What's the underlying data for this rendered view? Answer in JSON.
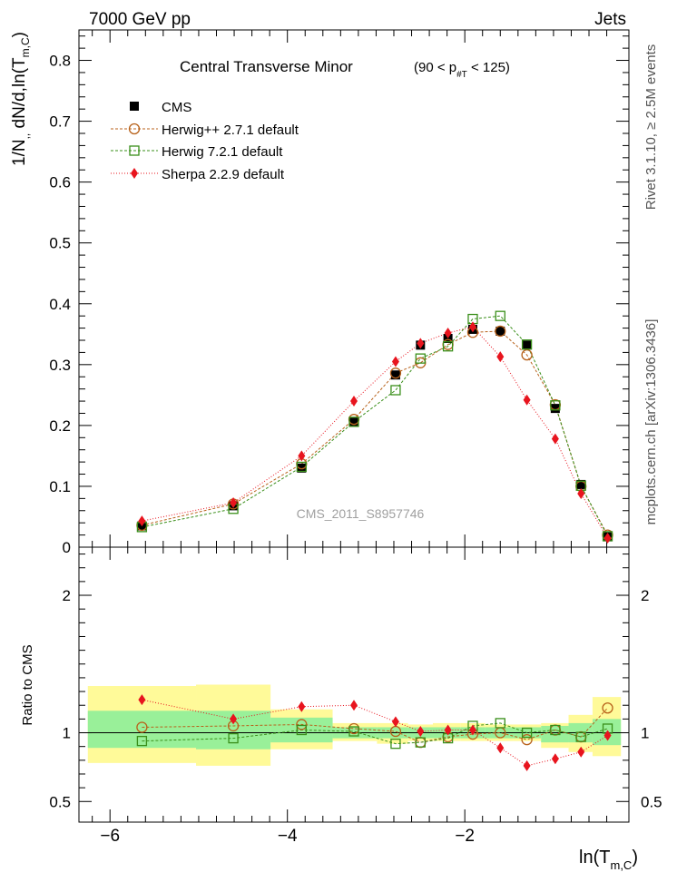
{
  "header": {
    "left": "7000 GeV pp",
    "right": "Jets",
    "side_right_top": "Rivet 3.1.10, ≥ 2.5M events",
    "side_right_bottom": "mcplots.cern.ch [arXiv:1306.3436]",
    "watermark": "CMS_2011_S8957746"
  },
  "colors": {
    "cms": "#000000",
    "herwigpp": "#b8621b",
    "herwig7": "#3a8f1a",
    "sherpa": "#e8141e",
    "band_inner": "#99f099",
    "band_outer": "#fffa99"
  },
  "chart_data": [
    {
      "type": "line",
      "title": "Central Transverse Minor",
      "title_range": "(90 < p",
      "title_range_sub": "#T",
      "title_range_end": " < 125)",
      "ylabel": "1/N",
      "ylabel_sub1": ",,",
      "ylabel_mid": " dN/d,ln(T",
      "ylabel_sub2": "m,C",
      "ylabel_end": ")",
      "xlim": [
        -6.35,
        -0.15
      ],
      "ylim": [
        0,
        0.85
      ],
      "yticks": [
        "0",
        "0.1",
        "0.2",
        "0.3",
        "0.4",
        "0.5",
        "0.6",
        "0.7",
        "0.8"
      ],
      "legend_placement": "top-left",
      "x": [
        -5.64,
        -4.61,
        -3.84,
        -3.25,
        -2.78,
        -2.5,
        -2.19,
        -1.91,
        -1.6,
        -1.3,
        -0.98,
        -0.69,
        -0.39
      ],
      "bin_edges": [
        -6.25,
        -5.03,
        -4.19,
        -3.49,
        -2.99,
        -2.64,
        -2.36,
        -2.05,
        -1.77,
        -1.45,
        -1.14,
        -0.83,
        -0.56,
        -0.24
      ],
      "series": [
        {
          "name": "CMS",
          "key": "cms",
          "marker": "square-filled",
          "values": [
            0.035,
            0.068,
            0.13,
            0.205,
            0.283,
            0.332,
            0.343,
            0.358,
            0.355,
            0.332,
            0.228,
            0.103,
            0.017
          ]
        },
        {
          "name": "Herwig++ 2.7.1 default",
          "key": "herwigpp",
          "marker": "circle-open",
          "values": [
            0.036,
            0.071,
            0.137,
            0.21,
            0.286,
            0.303,
            0.333,
            0.353,
            0.355,
            0.316,
            0.234,
            0.1,
            0.02
          ]
        },
        {
          "name": "Herwig 7.2.1 default",
          "key": "herwig7",
          "marker": "square-open",
          "values": [
            0.033,
            0.063,
            0.132,
            0.206,
            0.258,
            0.31,
            0.33,
            0.375,
            0.38,
            0.333,
            0.233,
            0.101,
            0.018
          ]
        },
        {
          "name": "Sherpa 2.2.9 default",
          "key": "sherpa",
          "marker": "diamond-filled",
          "values": [
            0.043,
            0.073,
            0.15,
            0.24,
            0.305,
            0.335,
            0.352,
            0.362,
            0.313,
            0.242,
            0.178,
            0.088,
            0.015
          ]
        }
      ]
    },
    {
      "type": "line",
      "ylabel": "Ratio to CMS",
      "xlabel": "ln(T",
      "xlabel_sub": "m,C",
      "xlabel_end": ")",
      "xlim": [
        -6.35,
        -0.15
      ],
      "ylim": [
        0.35,
        2.35
      ],
      "yticks": [
        "0.5",
        "1",
        "2"
      ],
      "xticks": [
        "−6",
        "−4",
        "−2"
      ],
      "reference_line": 1,
      "band_inner": [
        [
          0.89,
          1.16
        ],
        [
          0.88,
          1.16
        ],
        [
          0.93,
          1.11
        ],
        [
          0.96,
          1.04
        ],
        [
          0.96,
          1.04
        ],
        [
          0.96,
          1.04
        ],
        [
          0.96,
          1.04
        ],
        [
          0.96,
          1.04
        ],
        [
          0.96,
          1.04
        ],
        [
          0.96,
          1.04
        ],
        [
          0.93,
          1.05
        ],
        [
          0.93,
          1.07
        ],
        [
          0.91,
          1.1
        ]
      ],
      "band_outer": [
        [
          0.78,
          1.34
        ],
        [
          0.76,
          1.35
        ],
        [
          0.88,
          1.17
        ],
        [
          0.94,
          1.07
        ],
        [
          0.92,
          1.07
        ],
        [
          0.94,
          1.06
        ],
        [
          0.94,
          1.07
        ],
        [
          0.94,
          1.07
        ],
        [
          0.94,
          1.06
        ],
        [
          0.94,
          1.06
        ],
        [
          0.89,
          1.07
        ],
        [
          0.86,
          1.13
        ],
        [
          0.83,
          1.26
        ]
      ],
      "series": [
        {
          "name": "Herwig++ 2.7.1 default",
          "key": "herwigpp",
          "marker": "circle-open",
          "values": [
            1.04,
            1.05,
            1.06,
            1.03,
            1.01,
            0.93,
            0.97,
            0.99,
            1.0,
            0.95,
            1.02,
            0.97,
            1.18
          ]
        },
        {
          "name": "Herwig 7.2.1 default",
          "key": "herwig7",
          "marker": "square-open",
          "values": [
            0.94,
            0.96,
            1.02,
            1.01,
            0.92,
            0.93,
            0.96,
            1.05,
            1.07,
            1.0,
            1.02,
            0.97,
            1.03
          ]
        },
        {
          "name": "Sherpa 2.2.9 default",
          "key": "sherpa",
          "marker": "diamond-filled",
          "values": [
            1.24,
            1.1,
            1.19,
            1.2,
            1.08,
            1.01,
            1.02,
            1.02,
            0.89,
            0.76,
            0.81,
            0.86,
            0.98
          ]
        }
      ]
    }
  ]
}
